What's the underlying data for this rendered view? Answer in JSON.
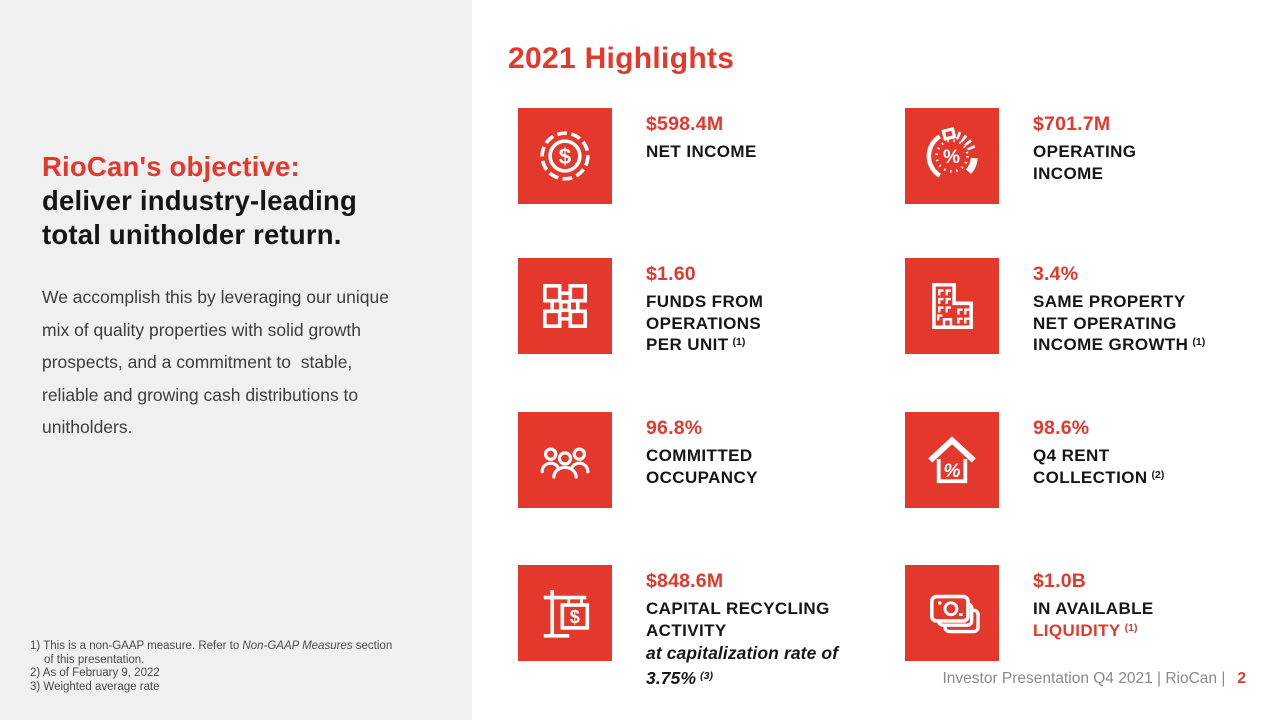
{
  "colors": {
    "brand_red": "#E5382C",
    "panel_bg": "#F0F0F0",
    "headline_black": "#151515",
    "body_text": "#3D3D3D",
    "label_black": "#161616",
    "footnote_gray": "#4A4A4A",
    "footer_gray": "#8A8A8A",
    "icon_white": "#FFFFFF"
  },
  "left_panel": {
    "headline_red": "RioCan's objective:",
    "headline_black_lines": [
      "deliver industry-leading",
      "total unitholder return."
    ],
    "body_lines": [
      "We accomplish this by leveraging our unique",
      "mix of quality properties with solid growth",
      "prospects, and a commitment to  stable,",
      "reliable and growing cash distributions to",
      "unitholders."
    ],
    "footnote_lines": [
      {
        "indent": false,
        "segments": [
          {
            "text": "1) This is a non-GAAP measure. Refer to "
          },
          {
            "text": "Non-GAAP Measures",
            "italic": true
          },
          {
            "text": " section"
          }
        ]
      },
      {
        "indent": true,
        "segments": [
          {
            "text": "of this presentation."
          }
        ]
      },
      {
        "indent": false,
        "segments": [
          {
            "text": "2) As of February 9, 2022"
          }
        ]
      },
      {
        "indent": false,
        "segments": [
          {
            "text": "3) Weighted average rate"
          }
        ]
      }
    ]
  },
  "highlights": {
    "title": "2021 Highlights",
    "cards": [
      {
        "icon": "coin-dollar-icon",
        "value": "$598.4M",
        "lines": [
          {
            "text": "NET INCOME"
          }
        ]
      },
      {
        "icon": "pie-percent-icon",
        "value": "$701.7M",
        "lines": [
          {
            "text": "OPERATING"
          },
          {
            "text": "INCOME"
          }
        ]
      },
      {
        "icon": "network-squares-icon",
        "value": "$1.60",
        "lines": [
          {
            "text": "FUNDS FROM"
          },
          {
            "text": "OPERATIONS"
          },
          {
            "text": "PER UNIT",
            "sup": "(1)"
          }
        ]
      },
      {
        "icon": "building-icon",
        "value": "3.4%",
        "lines": [
          {
            "text": "SAME PROPERTY"
          },
          {
            "text": "NET OPERATING"
          },
          {
            "text": "INCOME GROWTH",
            "sup": "(1)"
          }
        ]
      },
      {
        "icon": "people-group-icon",
        "value": "96.8%",
        "lines": [
          {
            "text": "COMMITTED"
          },
          {
            "text": "OCCUPANCY"
          }
        ]
      },
      {
        "icon": "house-percent-icon",
        "value": "98.6%",
        "lines": [
          {
            "text": "Q4 RENT"
          },
          {
            "text": "COLLECTION",
            "sup": "(2)"
          }
        ]
      },
      {
        "icon": "sign-dollar-icon",
        "value": "$848.6M",
        "lines": [
          {
            "text": "CAPITAL RECYCLING"
          },
          {
            "text": "ACTIVITY"
          },
          {
            "text": "at capitalization rate of",
            "italic": true
          },
          {
            "text": "3.75%",
            "italic": true,
            "sup": "(3)"
          }
        ]
      },
      {
        "icon": "banknotes-icon",
        "value": "$1.0B",
        "lines": [
          {
            "text": "IN AVAILABLE"
          },
          {
            "text": "LIQUIDITY",
            "sup": "(1)",
            "red": true
          }
        ]
      }
    ]
  },
  "footer": {
    "label": "Investor Presentation Q4 2021 | RioCan |",
    "page_number": "2"
  }
}
